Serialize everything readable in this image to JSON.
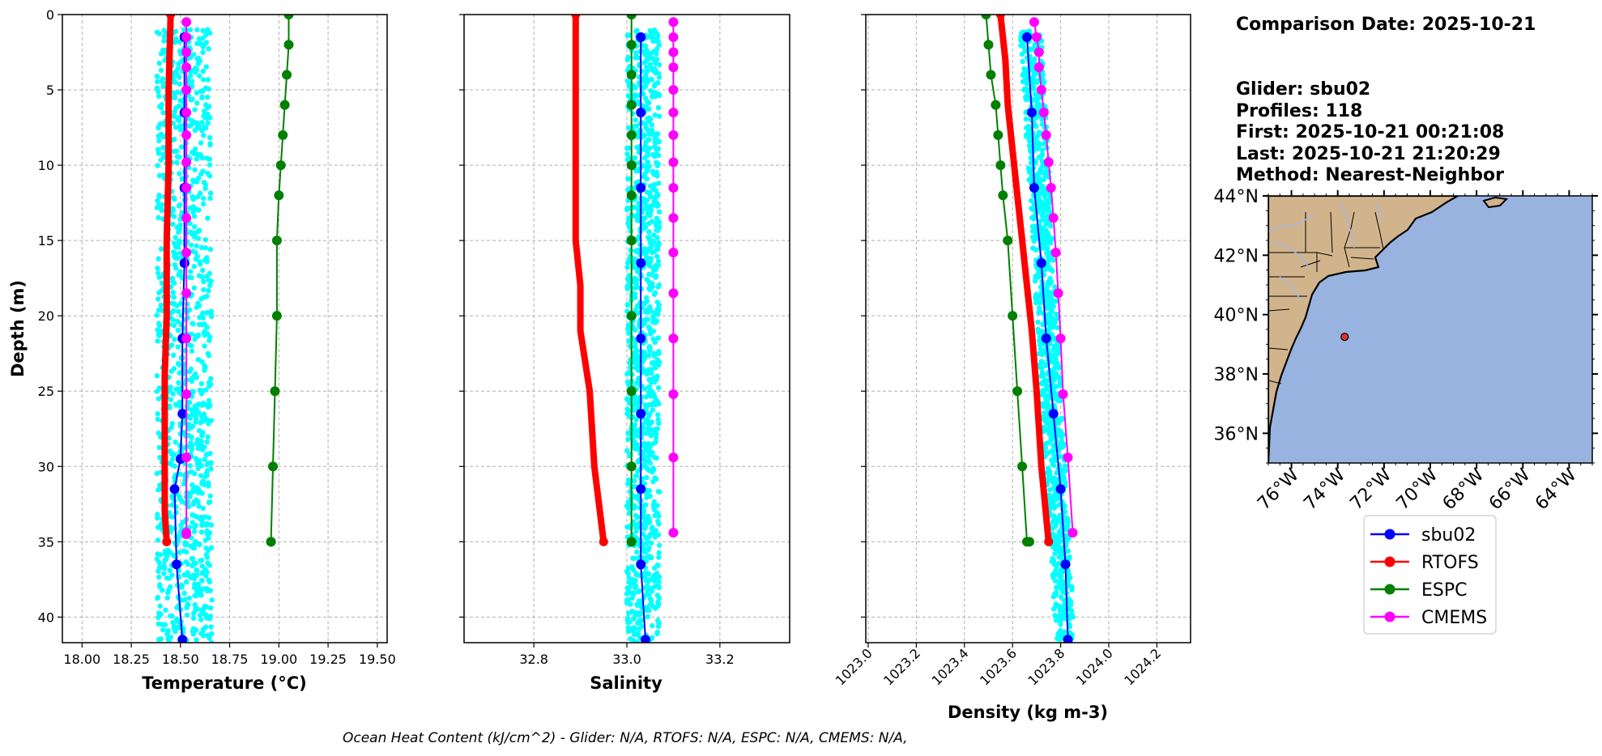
{
  "info": {
    "comparison_date": "Comparison Date: 2025-10-21",
    "glider": "Glider: sbu02",
    "profiles": "Profiles: 118",
    "first": "First: 2025-10-21 00:21:08",
    "last": "Last: 2025-10-21 21:20:29",
    "method": "Method: Nearest-Neighbor"
  },
  "footer": "Ocean Heat Content (kJ/cm^2) - Glider: N/A,  RTOFS: N/A,  ESPC: N/A,  CMEMS: N/A,",
  "colors": {
    "sbu02": "#0000ff",
    "RTOFS": "#ff0000",
    "ESPC": "#008000",
    "CMEMS": "#ff00ff",
    "scatter": "#00ffff",
    "land": "#d2b48c",
    "ocean": "#99b3e0",
    "river": "#a7b8dc",
    "marker": "#e03030"
  },
  "legend": [
    "sbu02",
    "RTOFS",
    "ESPC",
    "CMEMS"
  ],
  "map": {
    "lat_labels": [
      "44°N",
      "42°N",
      "40°N",
      "38°N",
      "36°N"
    ],
    "lon_labels": [
      "76°W",
      "74°W",
      "72°W",
      "70°W",
      "68°W",
      "66°W",
      "64°W"
    ],
    "extent": {
      "lon": [
        -77,
        -63
      ],
      "lat": [
        35,
        44
      ]
    },
    "marker": {
      "lon": -73.7,
      "lat": 39.25
    }
  },
  "chart_data": [
    {
      "type": "line",
      "xlabel": "Temperature (°C)",
      "ylabel": "Depth (m)",
      "xlim": [
        17.9,
        19.55
      ],
      "ylim": [
        41.7,
        0
      ],
      "xticks": [
        "18.00",
        "18.25",
        "18.50",
        "18.75",
        "19.00",
        "19.25",
        "19.50"
      ],
      "yticks": [
        "0",
        "5",
        "10",
        "15",
        "20",
        "25",
        "30",
        "35",
        "40"
      ],
      "grid": true,
      "scatter_range": {
        "min": 18.38,
        "max": 18.66,
        "depth_min": 1,
        "depth_max": 41.7
      },
      "series": [
        {
          "name": "sbu02",
          "x": [
            18.52,
            18.52,
            18.52,
            18.52,
            18.51,
            18.51,
            18.5,
            18.47,
            18.48,
            18.51
          ],
          "y": [
            1.5,
            6.5,
            11.5,
            16.5,
            21.5,
            26.5,
            29.5,
            31.5,
            36.5,
            41.5
          ]
        },
        {
          "name": "RTOFS",
          "x": [
            18.45,
            18.44,
            18.44,
            18.43,
            18.43,
            18.42,
            18.42,
            18.42,
            18.42,
            18.43
          ],
          "y": [
            0,
            5,
            10,
            15,
            20,
            24,
            27,
            30,
            33,
            35
          ]
        },
        {
          "name": "ESPC",
          "x": [
            19.05,
            19.05,
            19.04,
            19.03,
            19.02,
            19.01,
            19.0,
            18.99,
            18.99,
            18.98,
            18.97,
            18.96,
            18.96
          ],
          "y": [
            0,
            2,
            4,
            6,
            8,
            10,
            12,
            15,
            20,
            25,
            30,
            35,
            35
          ]
        },
        {
          "name": "CMEMS",
          "x": [
            18.53,
            18.53,
            18.53,
            18.53,
            18.53,
            18.53,
            18.53,
            18.53,
            18.53,
            18.53,
            18.53,
            18.53,
            18.53,
            18.53,
            18.53,
            18.53,
            18.53
          ],
          "y": [
            0.5,
            1.5,
            2.5,
            3.5,
            5,
            6.5,
            8,
            9.8,
            11.5,
            13.5,
            15.8,
            18.5,
            21.5,
            25.2,
            29.4,
            34.4,
            34.5
          ]
        }
      ]
    },
    {
      "type": "line",
      "xlabel": "Salinity",
      "xlim": [
        32.65,
        33.35
      ],
      "ylim": [
        41.7,
        0
      ],
      "xticks": [
        "32.8",
        "33.0",
        "33.2"
      ],
      "grid": true,
      "scatter_range": {
        "min": 33.0,
        "max": 33.07,
        "depth_min": 1,
        "depth_max": 41.7
      },
      "series": [
        {
          "name": "sbu02",
          "x": [
            33.03,
            33.03,
            33.03,
            33.03,
            33.03,
            33.03,
            33.03,
            33.03,
            33.04
          ],
          "y": [
            1.5,
            6.5,
            11.5,
            16.5,
            21.5,
            26.5,
            31.5,
            36.5,
            41.5
          ]
        },
        {
          "name": "RTOFS",
          "x": [
            32.89,
            32.89,
            32.89,
            32.89,
            32.89,
            32.89,
            32.9,
            32.9,
            32.92,
            32.93,
            32.95
          ],
          "y": [
            0,
            3,
            6,
            9,
            12,
            15,
            18,
            21,
            25,
            30,
            35
          ]
        },
        {
          "name": "ESPC",
          "x": [
            33.01,
            33.01,
            33.01,
            33.01,
            33.01,
            33.01,
            33.01,
            33.01,
            33.01,
            33.01,
            33.01,
            33.01,
            33.01
          ],
          "y": [
            0,
            2,
            4,
            6,
            8,
            10,
            12,
            15,
            20,
            25,
            30,
            35,
            35
          ]
        },
        {
          "name": "CMEMS",
          "x": [
            33.1,
            33.1,
            33.1,
            33.1,
            33.1,
            33.1,
            33.1,
            33.1,
            33.1,
            33.1,
            33.1,
            33.1,
            33.1,
            33.1,
            33.1,
            33.1
          ],
          "y": [
            0.5,
            1.5,
            2.5,
            3.5,
            5,
            6.5,
            8,
            9.8,
            11.5,
            13.5,
            15.8,
            18.5,
            21.5,
            25.2,
            29.4,
            34.4
          ]
        }
      ]
    },
    {
      "type": "line",
      "xlabel": "Density (kg m-3)",
      "xlim": [
        1022.99,
        1024.34
      ],
      "ylim": [
        41.7,
        0
      ],
      "xticks": [
        "1023.0",
        "1023.2",
        "1023.4",
        "1023.6",
        "1023.8",
        "1024.0",
        "1024.2"
      ],
      "grid": true,
      "scatter_range": {
        "min_top": 1023.63,
        "max_top": 1023.72,
        "min_bottom": 1023.78,
        "max_bottom": 1023.86,
        "depth_min": 1,
        "depth_max": 41.7
      },
      "series": [
        {
          "name": "sbu02",
          "x": [
            1023.66,
            1023.68,
            1023.69,
            1023.72,
            1023.74,
            1023.77,
            1023.8,
            1023.82,
            1023.83
          ],
          "y": [
            1.5,
            6.5,
            11.5,
            16.5,
            21.5,
            26.5,
            31.5,
            36.5,
            41.5
          ]
        },
        {
          "name": "RTOFS",
          "x": [
            1023.55,
            1023.57,
            1023.58,
            1023.6,
            1023.62,
            1023.64,
            1023.66,
            1023.68,
            1023.7,
            1023.72,
            1023.75
          ],
          "y": [
            0,
            3,
            6,
            9,
            12,
            15,
            18,
            21,
            25,
            30,
            35
          ]
        },
        {
          "name": "ESPC",
          "x": [
            1023.49,
            1023.5,
            1023.51,
            1023.53,
            1023.54,
            1023.55,
            1023.56,
            1023.58,
            1023.6,
            1023.62,
            1023.64,
            1023.66,
            1023.67
          ],
          "y": [
            0,
            2,
            4,
            6,
            8,
            10,
            12,
            15,
            20,
            25,
            30,
            35,
            35
          ]
        },
        {
          "name": "CMEMS",
          "x": [
            1023.69,
            1023.7,
            1023.71,
            1023.71,
            1023.72,
            1023.73,
            1023.74,
            1023.75,
            1023.76,
            1023.77,
            1023.78,
            1023.79,
            1023.8,
            1023.81,
            1023.83,
            1023.85
          ],
          "y": [
            0.5,
            1.5,
            2.5,
            3.5,
            5,
            6.5,
            8,
            9.8,
            11.5,
            13.5,
            15.8,
            18.5,
            21.5,
            25.2,
            29.4,
            34.4
          ]
        }
      ]
    }
  ]
}
